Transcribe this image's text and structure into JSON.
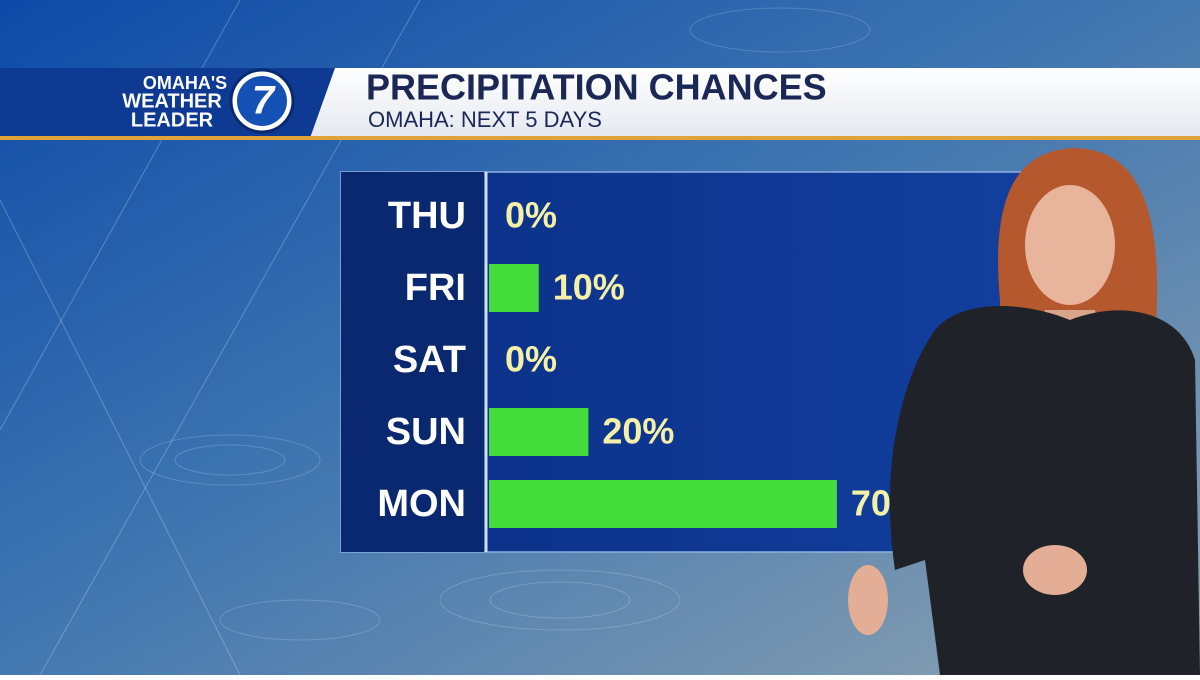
{
  "chart_data": {
    "type": "hbar",
    "title": "PRECIPITATION CHANCES",
    "subtitle": "OMAHA: NEXT 5 DAYS",
    "categories": [
      "THU",
      "FRI",
      "SAT",
      "SUN",
      "MON"
    ],
    "values": [
      0,
      10,
      0,
      20,
      70
    ],
    "value_labels": [
      "0%",
      "10%",
      "0%",
      "20%",
      "70%"
    ],
    "color": "#45dd3c"
  },
  "logo": {
    "lines": [
      "OMAHA'S",
      "WEATHER",
      "LEADER"
    ],
    "number": "7"
  }
}
